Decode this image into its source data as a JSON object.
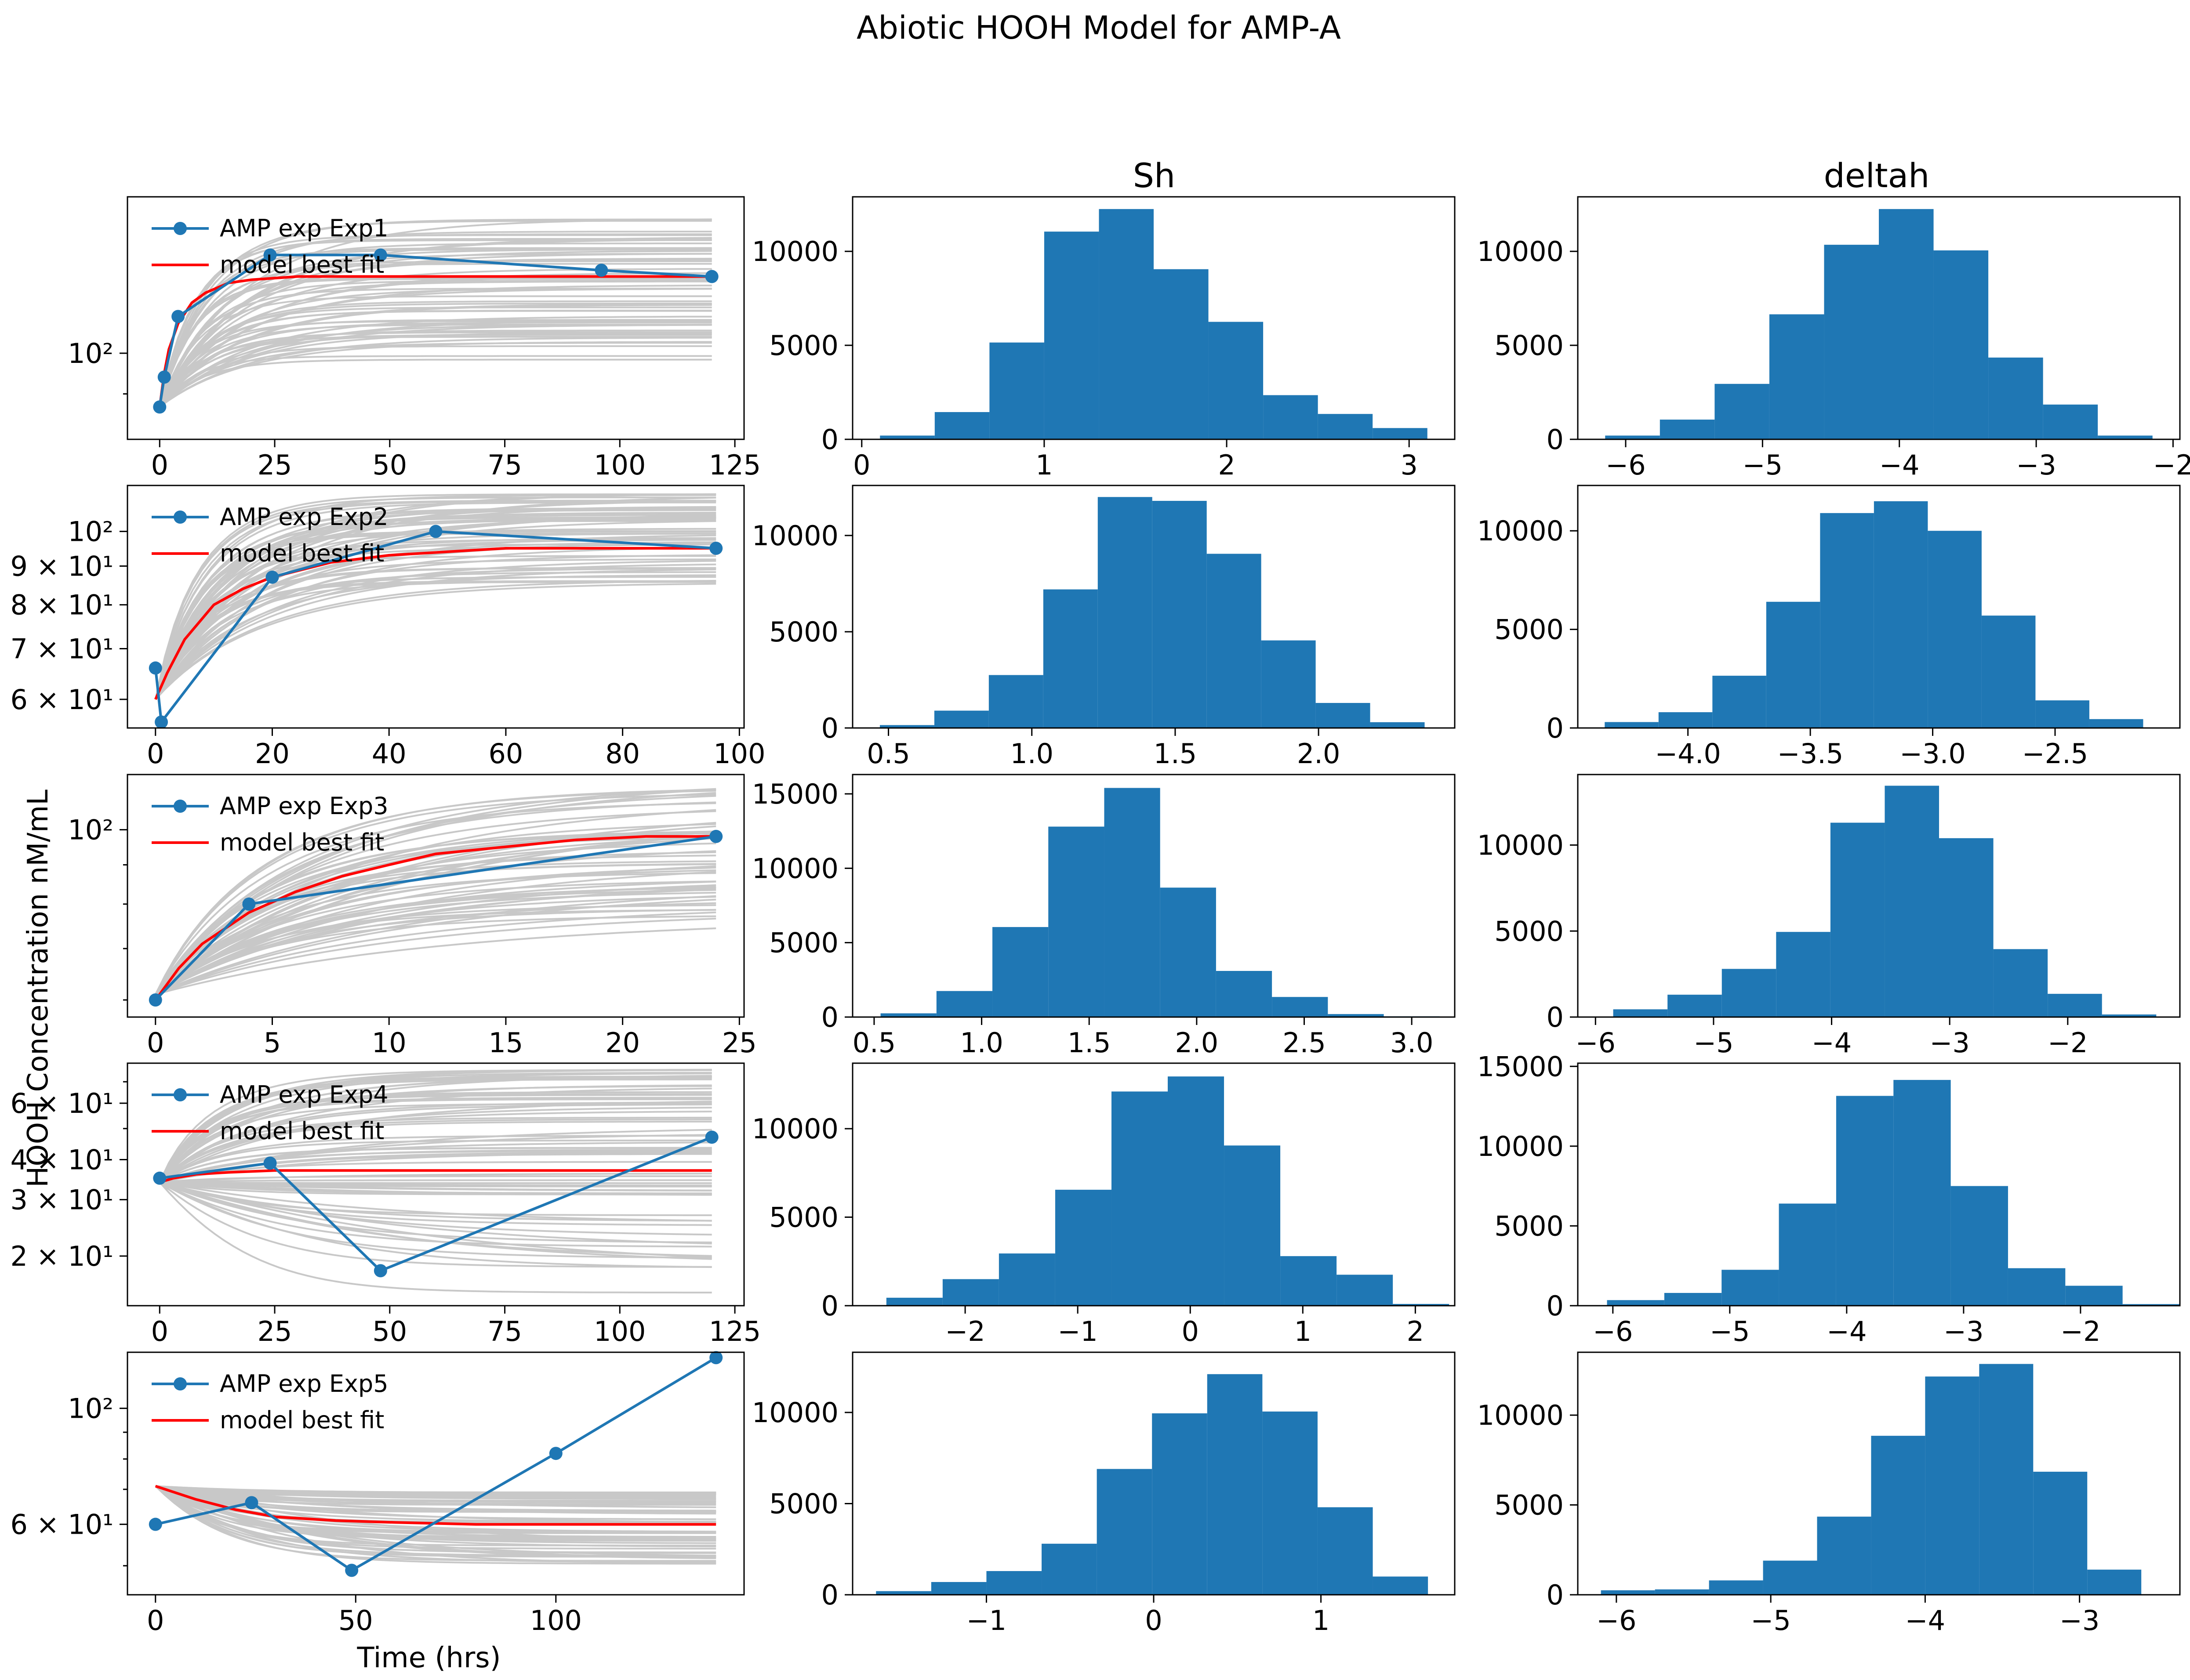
{
  "figure": {
    "title": "Abiotic HOOH Model for AMP-A",
    "ylabel": "HOOH Concentration nM/mL",
    "xlabel": "Time (hrs)",
    "column_titles": [
      "",
      "Sh",
      "deltah"
    ],
    "line_color": "#1f77b4",
    "model_color": "#ff0000",
    "ensemble_color": "#c8c8c8",
    "bar_color": "#1f77b4"
  },
  "chart_data": [
    {
      "type": "line",
      "row": 0,
      "col": 0,
      "yscale": "log",
      "xlim": [
        -7,
        127
      ],
      "ylim": [
        80,
        150
      ],
      "xticks": [
        0,
        25,
        50,
        75,
        100,
        125
      ],
      "xticklabels": [
        "0",
        "25",
        "50",
        "75",
        "100",
        "125"
      ],
      "yticks": [
        100
      ],
      "yticklabels": [
        "10²"
      ],
      "series": [
        {
          "name": "AMP exp Exp1",
          "x": [
            0,
            1,
            4,
            24,
            48,
            96,
            120
          ],
          "y": [
            87,
            94,
            110,
            129,
            129,
            124,
            122
          ]
        },
        {
          "name": "model best fit",
          "x": [
            0,
            1,
            2,
            4,
            7,
            10,
            15,
            20,
            30,
            40,
            60,
            80,
            100,
            120
          ],
          "y": [
            87,
            95,
            101,
            108,
            114,
            117,
            120,
            121,
            122,
            122,
            122,
            122,
            122,
            122
          ]
        }
      ],
      "ensemble": {
        "x0": 0,
        "x1": 120,
        "start": 87,
        "end_range": [
          98,
          142
        ],
        "rate_range": [
          0.04,
          0.12
        ],
        "count": 60
      }
    },
    {
      "type": "bar",
      "row": 0,
      "col": 1,
      "xlim": [
        -0.05,
        3.25
      ],
      "ylim": [
        0,
        12900
      ],
      "xticks": [
        0,
        1,
        2,
        3
      ],
      "xticklabels": [
        "0",
        "1",
        "2",
        "3"
      ],
      "yticks": [
        0,
        5000,
        10000
      ],
      "yticklabels": [
        "0",
        "5000",
        "10000"
      ],
      "bin_edges": [
        0.1,
        0.4,
        0.7,
        1.0,
        1.3,
        1.6,
        1.9,
        2.2,
        2.5,
        2.8,
        3.1
      ],
      "values": [
        200,
        1450,
        5150,
        11050,
        12250,
        9050,
        6250,
        2350,
        1350,
        600
      ]
    },
    {
      "type": "bar",
      "row": 0,
      "col": 2,
      "xlim": [
        -6.35,
        -1.95
      ],
      "ylim": [
        0,
        12900
      ],
      "xticks": [
        -6,
        -5,
        -4,
        -3,
        -2
      ],
      "xticklabels": [
        "−6",
        "−5",
        "−4",
        "−3",
        "−2"
      ],
      "yticks": [
        0,
        5000,
        10000
      ],
      "yticklabels": [
        "0",
        "5000",
        "10000"
      ],
      "bin_edges": [
        -6.15,
        -5.75,
        -5.35,
        -4.95,
        -4.55,
        -4.15,
        -3.75,
        -3.35,
        -2.95,
        -2.55,
        -2.15
      ],
      "values": [
        200,
        1050,
        2950,
        6650,
        10350,
        12250,
        10050,
        4350,
        1850,
        200
      ]
    },
    {
      "type": "line",
      "row": 1,
      "col": 0,
      "yscale": "log",
      "xlim": [
        -4.8,
        100.8
      ],
      "ylim": [
        55,
        115
      ],
      "xticks": [
        0,
        20,
        40,
        60,
        80,
        100
      ],
      "xticklabels": [
        "0",
        "20",
        "40",
        "60",
        "80",
        "100"
      ],
      "yticks": [
        60,
        70,
        80,
        90,
        100
      ],
      "yticklabels": [
        "6 × 10¹",
        "7 × 10¹",
        "8 × 10¹",
        "9 × 10¹",
        "10²"
      ],
      "series": [
        {
          "name": "AMP exp Exp2",
          "x": [
            0,
            1,
            20,
            48,
            96
          ],
          "y": [
            66,
            56,
            87,
            100,
            95
          ]
        },
        {
          "name": "model best fit",
          "x": [
            0,
            2,
            5,
            10,
            15,
            20,
            30,
            40,
            50,
            60,
            70,
            80,
            96
          ],
          "y": [
            60,
            65,
            72,
            80,
            84,
            87,
            91,
            93,
            94,
            95,
            95,
            95,
            95
          ]
        }
      ],
      "ensemble": {
        "x0": 0,
        "x1": 96,
        "start": 60,
        "end_range": [
          85,
          113
        ],
        "rate_range": [
          0.04,
          0.11
        ],
        "count": 60
      }
    },
    {
      "type": "bar",
      "row": 1,
      "col": 1,
      "xlim": [
        0.375,
        2.475
      ],
      "ylim": [
        0,
        12600
      ],
      "xticks": [
        0.5,
        1.0,
        1.5,
        2.0
      ],
      "xticklabels": [
        "0.5",
        "1.0",
        "1.5",
        "2.0"
      ],
      "yticks": [
        0,
        5000,
        10000
      ],
      "yticklabels": [
        "0",
        "5000",
        "10000"
      ],
      "bin_edges": [
        0.47,
        0.66,
        0.85,
        1.04,
        1.23,
        1.42,
        1.61,
        1.8,
        1.99,
        2.18,
        2.37
      ],
      "values": [
        150,
        900,
        2750,
        7200,
        12000,
        11800,
        9050,
        4550,
        1300,
        300
      ]
    },
    {
      "type": "bar",
      "row": 1,
      "col": 2,
      "xlim": [
        -4.45,
        -1.99
      ],
      "ylim": [
        0,
        12300
      ],
      "xticks": [
        -4.0,
        -3.5,
        -3.0,
        -2.5
      ],
      "xticklabels": [
        "−4.0",
        "−3.5",
        "−3.0",
        "−2.5"
      ],
      "yticks": [
        0,
        5000,
        10000
      ],
      "yticklabels": [
        "0",
        "5000",
        "10000"
      ],
      "bin_edges": [
        -4.34,
        -4.12,
        -3.9,
        -3.68,
        -3.46,
        -3.24,
        -3.02,
        -2.8,
        -2.58,
        -2.36,
        -2.14
      ],
      "values": [
        300,
        800,
        2650,
        6400,
        10900,
        11500,
        10000,
        5700,
        1400,
        450
      ]
    },
    {
      "type": "line",
      "row": 2,
      "col": 0,
      "yscale": "log",
      "xlim": [
        -1.2,
        25.2
      ],
      "ylim": [
        57,
        118
      ],
      "xticks": [
        0,
        5,
        10,
        15,
        20,
        25
      ],
      "xticklabels": [
        "0",
        "5",
        "10",
        "15",
        "20",
        "25"
      ],
      "yticks": [
        100
      ],
      "yticklabels": [
        "10²"
      ],
      "series": [
        {
          "name": "AMP exp Exp3",
          "x": [
            0,
            4,
            24
          ],
          "y": [
            60,
            80,
            98
          ]
        },
        {
          "name": "model best fit",
          "x": [
            0,
            1,
            2,
            4,
            6,
            8,
            10,
            12,
            15,
            18,
            21,
            24
          ],
          "y": [
            60,
            66,
            71,
            78,
            83,
            87,
            90,
            93,
            95,
            97,
            98,
            98
          ]
        }
      ],
      "ensemble": {
        "x0": 0,
        "x1": 24,
        "start": 61,
        "end_range": [
          77,
          117
        ],
        "rate_range": [
          0.07,
          0.2
        ],
        "count": 60
      }
    },
    {
      "type": "bar",
      "row": 2,
      "col": 1,
      "xlim": [
        0.4,
        3.2
      ],
      "ylim": [
        0,
        16300
      ],
      "xticks": [
        0.5,
        1.0,
        1.5,
        2.0,
        2.5,
        3.0
      ],
      "xticklabels": [
        "0.5",
        "1.0",
        "1.5",
        "2.0",
        "2.5",
        "3.0"
      ],
      "yticks": [
        0,
        5000,
        10000,
        15000
      ],
      "yticklabels": [
        "0",
        "5000",
        "10000",
        "15000"
      ],
      "bin_edges": [
        0.53,
        0.79,
        1.05,
        1.31,
        1.57,
        1.83,
        2.09,
        2.35,
        2.61,
        2.87,
        3.13
      ],
      "values": [
        250,
        1750,
        6050,
        12800,
        15400,
        8700,
        3100,
        1350,
        200,
        50
      ]
    },
    {
      "type": "bar",
      "row": 2,
      "col": 2,
      "xlim": [
        -6.15,
        -1.05
      ],
      "ylim": [
        0,
        14100
      ],
      "xticks": [
        -6,
        -5,
        -4,
        -3,
        -2
      ],
      "xticklabels": [
        "−6",
        "−5",
        "−4",
        "−3",
        "−2"
      ],
      "yticks": [
        0,
        5000,
        10000
      ],
      "yticklabels": [
        "0",
        "5000",
        "10000"
      ],
      "bin_edges": [
        -5.85,
        -5.39,
        -4.93,
        -4.47,
        -4.01,
        -3.55,
        -3.09,
        -2.63,
        -2.17,
        -1.71,
        -1.25
      ],
      "values": [
        450,
        1300,
        2800,
        4950,
        11300,
        13450,
        10400,
        3950,
        1350,
        150
      ]
    },
    {
      "type": "line",
      "row": 3,
      "col": 0,
      "yscale": "log",
      "xlim": [
        -7,
        127
      ],
      "ylim": [
        14,
        80
      ],
      "xticks": [
        0,
        25,
        50,
        75,
        100,
        125
      ],
      "xticklabels": [
        "0",
        "25",
        "50",
        "75",
        "100",
        "125"
      ],
      "yticks": [
        20,
        30,
        40,
        60
      ],
      "yticklabels": [
        "2 × 10¹",
        "3 × 10¹",
        "4 × 10¹",
        "6 × 10¹"
      ],
      "series": [
        {
          "name": "AMP exp Exp4",
          "x": [
            0,
            24,
            48,
            120
          ],
          "y": [
            35,
            39,
            18,
            47
          ]
        },
        {
          "name": "model best fit",
          "x": [
            0,
            3,
            8,
            15,
            25,
            40,
            60,
            80,
            100,
            120
          ],
          "y": [
            34,
            35,
            36,
            36.5,
            37,
            37,
            37,
            37,
            37,
            37
          ]
        }
      ],
      "ensemble": {
        "x0": 0,
        "x1": 120,
        "start": 34,
        "end_range": [
          15,
          77
        ],
        "rate_range": [
          0.02,
          0.07
        ],
        "count": 70
      }
    },
    {
      "type": "bar",
      "row": 3,
      "col": 1,
      "xlim": [
        -3.0,
        2.35
      ],
      "ylim": [
        0,
        13700
      ],
      "xticks": [
        -2,
        -1,
        0,
        1,
        2
      ],
      "xticklabels": [
        "−2",
        "−1",
        "0",
        "1",
        "2"
      ],
      "yticks": [
        0,
        5000,
        10000
      ],
      "yticklabels": [
        "0",
        "5000",
        "10000"
      ],
      "bin_edges": [
        -2.7,
        -2.2,
        -1.7,
        -1.2,
        -0.7,
        -0.2,
        0.3,
        0.8,
        1.3,
        1.8,
        2.3
      ],
      "values": [
        450,
        1500,
        2950,
        6550,
        12100,
        12950,
        9050,
        2800,
        1750,
        100
      ]
    },
    {
      "type": "bar",
      "row": 3,
      "col": 2,
      "xlim": [
        -6.3,
        -1.15
      ],
      "ylim": [
        0,
        15200
      ],
      "xticks": [
        -6,
        -5,
        -4,
        -3,
        -2
      ],
      "xticklabels": [
        "−6",
        "−5",
        "−4",
        "−3",
        "−2"
      ],
      "yticks": [
        0,
        5000,
        10000,
        15000
      ],
      "yticklabels": [
        "0",
        "5000",
        "10000",
        "15000"
      ],
      "bin_edges": [
        -6.05,
        -5.56,
        -5.07,
        -4.58,
        -4.09,
        -3.6,
        -3.11,
        -2.62,
        -2.13,
        -1.64,
        -1.15
      ],
      "values": [
        350,
        800,
        2250,
        6400,
        13150,
        14150,
        7500,
        2350,
        1250,
        100
      ]
    },
    {
      "type": "line",
      "row": 4,
      "col": 0,
      "yscale": "log",
      "xlim": [
        -7,
        147
      ],
      "ylim": [
        44,
        128
      ],
      "xticks": [
        0,
        50,
        100
      ],
      "xticklabels": [
        "0",
        "50",
        "100"
      ],
      "yticks": [
        60,
        100
      ],
      "yticklabels": [
        "6 × 10¹",
        "10²"
      ],
      "series": [
        {
          "name": "AMP exp Exp5",
          "x": [
            0,
            24,
            49,
            100,
            140
          ],
          "y": [
            60,
            66,
            49,
            82,
            125
          ]
        },
        {
          "name": "model best fit",
          "x": [
            0,
            10,
            20,
            30,
            45,
            60,
            80,
            100,
            120,
            140
          ],
          "y": [
            71,
            67,
            64,
            62,
            61,
            60.5,
            60,
            60,
            60,
            60
          ]
        }
      ],
      "ensemble": {
        "x0": 0,
        "x1": 140,
        "start": 71,
        "end_range": [
          50,
          70
        ],
        "rate_range": [
          0.02,
          0.07
        ],
        "count": 60
      }
    },
    {
      "type": "bar",
      "row": 4,
      "col": 1,
      "xlim": [
        -1.8,
        1.8
      ],
      "ylim": [
        0,
        13300
      ],
      "xticks": [
        -1,
        0,
        1
      ],
      "xticklabels": [
        "−1",
        "0",
        "1"
      ],
      "yticks": [
        0,
        5000,
        10000
      ],
      "yticklabels": [
        "0",
        "5000",
        "10000"
      ],
      "bin_edges": [
        -1.66,
        -1.33,
        -1.0,
        -0.67,
        -0.34,
        -0.01,
        0.32,
        0.65,
        0.98,
        1.31,
        1.64
      ],
      "values": [
        200,
        700,
        1300,
        2800,
        6900,
        9950,
        12100,
        10050,
        4800,
        1000
      ]
    },
    {
      "type": "bar",
      "row": 4,
      "col": 2,
      "xlim": [
        -6.25,
        -2.35
      ],
      "ylim": [
        0,
        13500
      ],
      "xticks": [
        -6,
        -5,
        -4,
        -3
      ],
      "xticklabels": [
        "−6",
        "−5",
        "−4",
        "−3"
      ],
      "yticks": [
        0,
        5000,
        10000
      ],
      "yticklabels": [
        "0",
        "5000",
        "10000"
      ],
      "bin_edges": [
        -6.1,
        -5.75,
        -5.4,
        -5.05,
        -4.7,
        -4.35,
        -4.0,
        -3.65,
        -3.3,
        -2.95,
        -2.6
      ],
      "values": [
        250,
        300,
        800,
        1900,
        4350,
        8850,
        12150,
        12850,
        6850,
        1400
      ]
    }
  ]
}
